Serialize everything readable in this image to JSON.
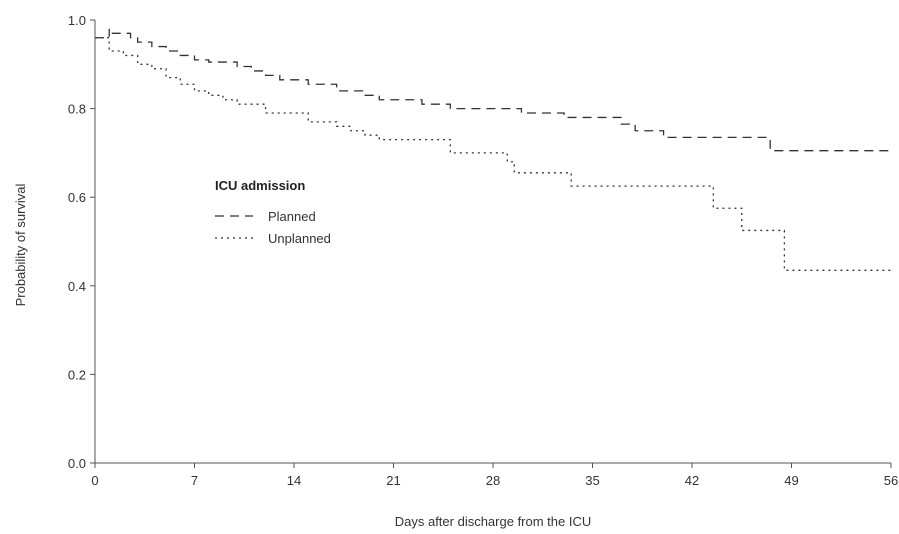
{
  "chart_data": {
    "type": "line",
    "title": "",
    "xlabel": "Days after discharge from the ICU",
    "ylabel": "Probability of survival",
    "xlim": [
      0,
      56
    ],
    "ylim": [
      0,
      1.0
    ],
    "x_ticks": [
      0,
      7,
      14,
      21,
      28,
      35,
      42,
      49,
      56
    ],
    "x_tick_labels": [
      "0",
      "7",
      "14",
      "21",
      "28",
      "35",
      "42",
      "49",
      "56"
    ],
    "y_ticks": [
      0,
      0.2,
      0.4,
      0.6,
      0.8,
      1.0
    ],
    "y_tick_labels": [
      "0.0",
      "0.2",
      "0.4",
      "0.6",
      "0.8",
      "1.0"
    ],
    "grid": false,
    "legend": {
      "title": "ICU admission",
      "placement": "center-left",
      "entries": [
        "Planned",
        "Unplanned"
      ]
    },
    "series": [
      {
        "name": "Planned",
        "line_style": "long-dash",
        "color": "#333333",
        "step": "post",
        "points": [
          [
            0,
            0.96
          ],
          [
            1,
            0.98
          ],
          [
            1,
            0.97
          ],
          [
            2,
            0.97
          ],
          [
            2.5,
            0.96
          ],
          [
            3,
            0.95
          ],
          [
            4,
            0.94
          ],
          [
            5,
            0.93
          ],
          [
            6,
            0.92
          ],
          [
            7,
            0.91
          ],
          [
            8,
            0.905
          ],
          [
            10,
            0.895
          ],
          [
            11,
            0.885
          ],
          [
            12,
            0.875
          ],
          [
            13,
            0.865
          ],
          [
            15,
            0.855
          ],
          [
            17,
            0.84
          ],
          [
            19,
            0.83
          ],
          [
            20,
            0.82
          ],
          [
            23,
            0.81
          ],
          [
            25,
            0.8
          ],
          [
            30,
            0.79
          ],
          [
            33,
            0.78
          ],
          [
            37,
            0.765
          ],
          [
            38,
            0.75
          ],
          [
            40,
            0.735
          ],
          [
            47.5,
            0.705
          ],
          [
            56,
            0.705
          ]
        ]
      },
      {
        "name": "Unplanned",
        "line_style": "dotted",
        "color": "#333333",
        "step": "post",
        "points": [
          [
            0,
            0.96
          ],
          [
            1,
            0.93
          ],
          [
            2,
            0.92
          ],
          [
            3,
            0.9
          ],
          [
            4,
            0.89
          ],
          [
            5,
            0.87
          ],
          [
            6,
            0.855
          ],
          [
            7,
            0.84
          ],
          [
            8,
            0.83
          ],
          [
            9,
            0.82
          ],
          [
            10,
            0.81
          ],
          [
            12,
            0.79
          ],
          [
            15,
            0.77
          ],
          [
            17,
            0.76
          ],
          [
            18,
            0.75
          ],
          [
            19,
            0.74
          ],
          [
            20,
            0.73
          ],
          [
            25,
            0.7
          ],
          [
            29,
            0.68
          ],
          [
            29.5,
            0.655
          ],
          [
            33.5,
            0.625
          ],
          [
            43.5,
            0.575
          ],
          [
            45.5,
            0.525
          ],
          [
            48.5,
            0.435
          ],
          [
            56,
            0.435
          ]
        ]
      }
    ]
  }
}
